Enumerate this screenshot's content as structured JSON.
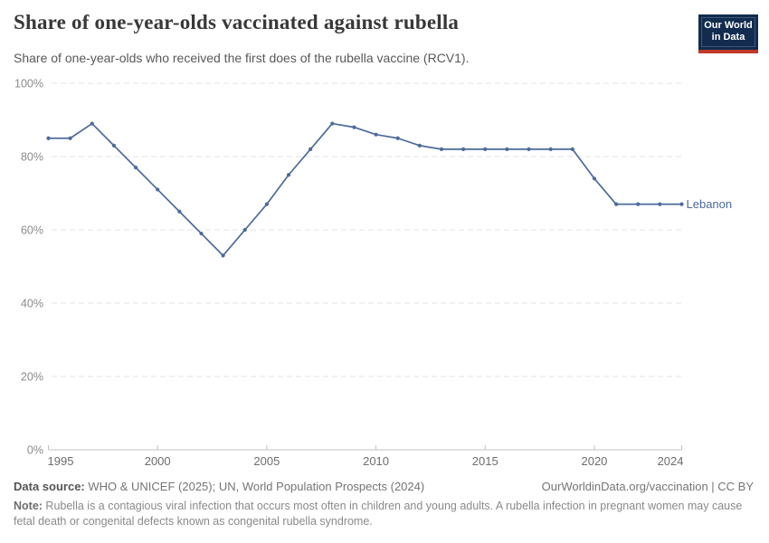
{
  "header": {
    "title": "Share of one-year-olds vaccinated against rubella",
    "subtitle": "Share of one-year-olds who received the first does of the rubella vaccine (RCV1).",
    "logo": {
      "line1": "Our World",
      "line2": "in Data",
      "bg_color": "#122b4e",
      "bar_color": "#c0392b"
    }
  },
  "chart_data": {
    "type": "line",
    "title": "Share of one-year-olds vaccinated against rubella",
    "xlabel": "",
    "ylabel": "",
    "xlim": [
      1995,
      2024
    ],
    "ylim": [
      0,
      100
    ],
    "grid": "horizontal-dashed",
    "legend_position": "end-of-line-label",
    "x_ticks": [
      1995,
      2000,
      2005,
      2010,
      2015,
      2020,
      2024
    ],
    "y_ticks": [
      0,
      20,
      40,
      60,
      80,
      100
    ],
    "y_tick_suffix": "%",
    "series": [
      {
        "name": "Lebanon",
        "color": "#4c6a9c",
        "x": [
          1995,
          1996,
          1997,
          1998,
          1999,
          2000,
          2001,
          2002,
          2003,
          2004,
          2005,
          2006,
          2007,
          2008,
          2009,
          2010,
          2011,
          2012,
          2013,
          2014,
          2015,
          2016,
          2017,
          2018,
          2019,
          2020,
          2021,
          2022,
          2023,
          2024
        ],
        "values": [
          85,
          85,
          89,
          83,
          77,
          71,
          65,
          59,
          53,
          60,
          67,
          75,
          82,
          89,
          88,
          86,
          85,
          83,
          82,
          82,
          82,
          82,
          82,
          82,
          82,
          74,
          67,
          67,
          67,
          67
        ]
      }
    ]
  },
  "footer": {
    "source_label": "Data source:",
    "source_text": " WHO & UNICEF (2025); UN, World Population Prospects (2024)",
    "credit": "OurWorldinData.org/vaccination | CC BY",
    "note_label": "Note:",
    "note_text": " Rubella is a contagious viral infection that occurs most often in children and young adults. A rubella infection in pregnant women may cause fetal death or congenital defects known as congenital rubella syndrome."
  }
}
